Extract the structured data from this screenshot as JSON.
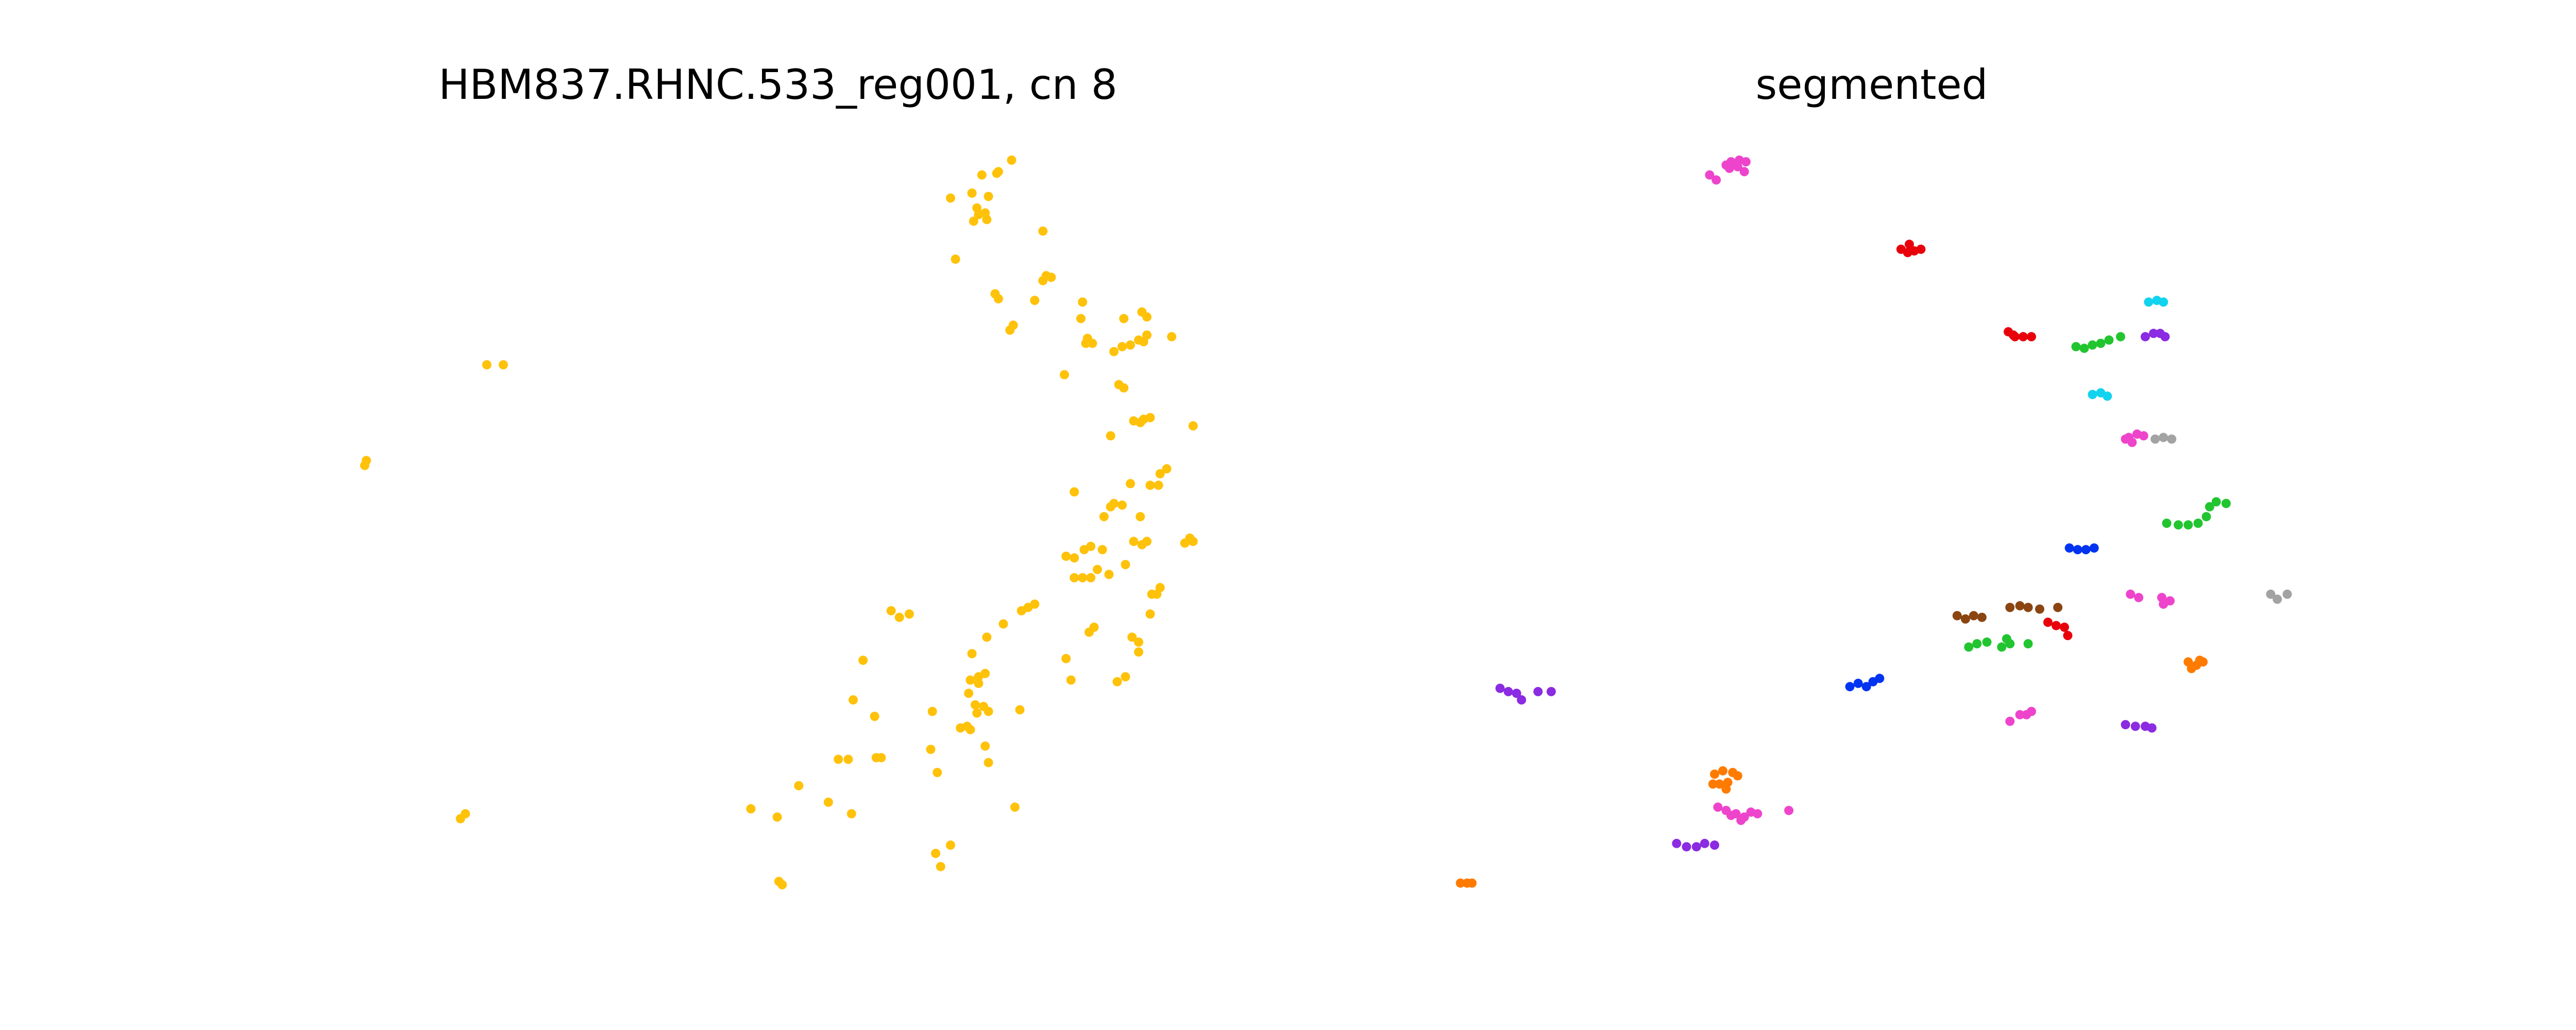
{
  "chart_data": [
    {
      "type": "scatter",
      "title": "HBM837.RHNC.533_reg001, cn 8",
      "axes_visible": false,
      "grid": false,
      "legend": "none",
      "series": [
        {
          "color": "#FFC20A",
          "points": [
            [
              613,
              97
            ],
            [
              604,
              105
            ],
            [
              595,
              106
            ],
            [
              605,
              104
            ],
            [
              589,
              117
            ],
            [
              599,
              119
            ],
            [
              576,
              120
            ],
            [
              592,
              126
            ],
            [
              597,
              129
            ],
            [
              593,
              130
            ],
            [
              590,
              134
            ],
            [
              598,
              133
            ],
            [
              632,
              140
            ],
            [
              579,
              157
            ],
            [
              634,
              167
            ],
            [
              637,
              168
            ],
            [
              632,
              170
            ],
            [
              603,
              178
            ],
            [
              605,
              181
            ],
            [
              627,
              182
            ],
            [
              656,
              183
            ],
            [
              614,
              197
            ],
            [
              612,
              200
            ],
            [
              655,
              193
            ],
            [
              681,
              193
            ],
            [
              692,
              189
            ],
            [
              695,
              192
            ],
            [
              659,
              205
            ],
            [
              662,
              208
            ],
            [
              658,
              208
            ],
            [
              675,
              213
            ],
            [
              680,
              210
            ],
            [
              685,
              209
            ],
            [
              690,
              206
            ],
            [
              693,
              207
            ],
            [
              695,
              203
            ],
            [
              710,
              204
            ],
            [
              645,
              227
            ],
            [
              678,
              233
            ],
            [
              681,
              235
            ],
            [
              687,
              255
            ],
            [
              693,
              254
            ],
            [
              697,
              253
            ],
            [
              691,
              256
            ],
            [
              723,
              258
            ],
            [
              673,
              264
            ],
            [
              707,
              284
            ],
            [
              703,
              287
            ],
            [
              685,
              293
            ],
            [
              697,
              294
            ],
            [
              702,
              294
            ],
            [
              651,
              298
            ],
            [
              675,
              305
            ],
            [
              680,
              306
            ],
            [
              673,
              307
            ],
            [
              669,
              313
            ],
            [
              691,
              313
            ],
            [
              721,
              326
            ],
            [
              723,
              328
            ],
            [
              718,
              329
            ],
            [
              687,
              328
            ],
            [
              692,
              330
            ],
            [
              695,
              328
            ],
            [
              661,
              331
            ],
            [
              668,
              333
            ],
            [
              657,
              333
            ],
            [
              646,
              337
            ],
            [
              651,
              338
            ],
            [
              682,
              342
            ],
            [
              665,
              345
            ],
            [
              656,
              350
            ],
            [
              661,
              350
            ],
            [
              651,
              350
            ],
            [
              672,
              348
            ],
            [
              703,
              356
            ],
            [
              701,
              360
            ],
            [
              698,
              360
            ],
            [
              623,
              368
            ],
            [
              627,
              366
            ],
            [
              619,
              370
            ],
            [
              540,
              370
            ],
            [
              545,
              374
            ],
            [
              551,
              372
            ],
            [
              697,
              372
            ],
            [
              608,
              378
            ],
            [
              663,
              380
            ],
            [
              660,
              383
            ],
            [
              598,
              386
            ],
            [
              686,
              386
            ],
            [
              690,
              389
            ],
            [
              690,
              395
            ],
            [
              589,
              396
            ],
            [
              646,
              399
            ],
            [
              523,
              400
            ],
            [
              597,
              408
            ],
            [
              593,
              410
            ],
            [
              588,
              412
            ],
            [
              593,
              414
            ],
            [
              649,
              412
            ],
            [
              677,
              413
            ],
            [
              682,
              410
            ],
            [
              587,
              420
            ],
            [
              517,
              424
            ],
            [
              591,
              427
            ],
            [
              596,
              428
            ],
            [
              599,
              431
            ],
            [
              592,
              432
            ],
            [
              618,
              430
            ],
            [
              565,
              431
            ],
            [
              530,
              434
            ],
            [
              582,
              441
            ],
            [
              588,
              442
            ],
            [
              586,
              440
            ],
            [
              564,
              454
            ],
            [
              597,
              452
            ],
            [
              508,
              460
            ],
            [
              514,
              460
            ],
            [
              531,
              459
            ],
            [
              534,
              459
            ],
            [
              599,
              462
            ],
            [
              568,
              468
            ],
            [
              484,
              476
            ],
            [
              502,
              486
            ],
            [
              455,
              490
            ],
            [
              516,
              493
            ],
            [
              471,
              495
            ],
            [
              615,
              489
            ],
            [
              576,
              512
            ],
            [
              567,
              517
            ],
            [
              570,
              525
            ],
            [
              472,
              534
            ],
            [
              474,
              536
            ],
            [
              295,
              221
            ],
            [
              305,
              221
            ],
            [
              222,
              279
            ],
            [
              221,
              282
            ],
            [
              282,
              493
            ],
            [
              279,
              496
            ]
          ]
        }
      ]
    },
    {
      "type": "scatter",
      "title": "segmented",
      "axes_visible": false,
      "grid": false,
      "legend": "none",
      "series": [
        {
          "color": "#EE44CC",
          "points": [
            [
              1049,
              98
            ],
            [
              1054,
              97
            ],
            [
              1058,
              98
            ],
            [
              1053,
              101
            ],
            [
              1048,
              102
            ],
            [
              1046,
              100
            ],
            [
              1036,
              106
            ],
            [
              1040,
              109
            ],
            [
              1057,
              104
            ],
            [
              1290,
              265
            ],
            [
              1295,
              263
            ],
            [
              1299,
              264
            ],
            [
              1292,
              268
            ],
            [
              1288,
              266
            ],
            [
              1291,
              360
            ],
            [
              1296,
              362
            ],
            [
              1310,
              362
            ],
            [
              1315,
              364
            ],
            [
              1311,
              366
            ],
            [
              1218,
              437
            ],
            [
              1224,
              433
            ],
            [
              1231,
              431
            ],
            [
              1228,
              433
            ],
            [
              1041,
              489
            ],
            [
              1046,
              491
            ],
            [
              1052,
              493
            ],
            [
              1057,
              495
            ],
            [
              1061,
              492
            ],
            [
              1065,
              493
            ],
            [
              1055,
              497
            ],
            [
              1049,
              494
            ],
            [
              1084,
              491
            ]
          ]
        },
        {
          "color": "#E8000B",
          "points": [
            [
              1152,
              151
            ],
            [
              1156,
              153
            ],
            [
              1160,
              152
            ],
            [
              1164,
              151
            ],
            [
              1157,
              148
            ],
            [
              1217,
              201
            ],
            [
              1221,
              204
            ],
            [
              1226,
              204
            ],
            [
              1231,
              204
            ],
            [
              1220,
              203
            ],
            [
              1241,
              377
            ],
            [
              1246,
              379
            ],
            [
              1251,
              380
            ],
            [
              1253,
              385
            ]
          ]
        },
        {
          "color": "#12D3EE",
          "points": [
            [
              1302,
              183
            ],
            [
              1307,
              182
            ],
            [
              1311,
              183
            ],
            [
              1268,
              239
            ],
            [
              1273,
              238
            ],
            [
              1277,
              240
            ]
          ]
        },
        {
          "color": "#22C530",
          "points": [
            [
              1258,
              210
            ],
            [
              1263,
              211
            ],
            [
              1268,
              209
            ],
            [
              1273,
              208
            ],
            [
              1278,
              206
            ],
            [
              1285,
              204
            ],
            [
              1313,
              317
            ],
            [
              1320,
              318
            ],
            [
              1326,
              318
            ],
            [
              1332,
              317
            ],
            [
              1337,
              313
            ],
            [
              1339,
              307
            ],
            [
              1343,
              304
            ],
            [
              1349,
              305
            ],
            [
              1193,
              392
            ],
            [
              1198,
              390
            ],
            [
              1204,
              389
            ],
            [
              1213,
              392
            ],
            [
              1218,
              390
            ],
            [
              1229,
              390
            ],
            [
              1216,
              387
            ]
          ]
        },
        {
          "color": "#8B2BE2",
          "points": [
            [
              1300,
              204
            ],
            [
              1305,
              202
            ],
            [
              1309,
              202
            ],
            [
              1312,
              204
            ],
            [
              1288,
              439
            ],
            [
              1294,
              440
            ],
            [
              1300,
              440
            ],
            [
              1304,
              441
            ],
            [
              909,
              417
            ],
            [
              914,
              419
            ],
            [
              919,
              420
            ],
            [
              922,
              424
            ],
            [
              932,
              419
            ],
            [
              940,
              419
            ],
            [
              1016,
              511
            ],
            [
              1022,
              513
            ],
            [
              1028,
              513
            ],
            [
              1033,
              511
            ],
            [
              1039,
              512
            ]
          ]
        },
        {
          "color": "#A3A3A3",
          "points": [
            [
              1306,
              266
            ],
            [
              1311,
              265
            ],
            [
              1316,
              266
            ],
            [
              1376,
              360
            ],
            [
              1380,
              363
            ],
            [
              1386,
              360
            ]
          ]
        },
        {
          "color": "#0034F0",
          "points": [
            [
              1254,
              332
            ],
            [
              1259,
              333
            ],
            [
              1264,
              333
            ],
            [
              1269,
              332
            ],
            [
              1121,
              416
            ],
            [
              1126,
              414
            ],
            [
              1131,
              416
            ],
            [
              1135,
              413
            ],
            [
              1139,
              411
            ]
          ]
        },
        {
          "color": "#8B4511",
          "points": [
            [
              1186,
              373
            ],
            [
              1191,
              375
            ],
            [
              1196,
              373
            ],
            [
              1201,
              374
            ],
            [
              1218,
              368
            ],
            [
              1224,
              367
            ],
            [
              1229,
              368
            ],
            [
              1236,
              369
            ],
            [
              1247,
              368
            ]
          ]
        },
        {
          "color": "#FF7B00",
          "points": [
            [
              1326,
              401
            ],
            [
              1331,
              403
            ],
            [
              1335,
              401
            ],
            [
              1328,
              405
            ],
            [
              1333,
              400
            ],
            [
              1039,
              469
            ],
            [
              1044,
              467
            ],
            [
              1050,
              468
            ],
            [
              1053,
              470
            ],
            [
              1047,
              474
            ],
            [
              1042,
              475
            ],
            [
              1038,
              475
            ],
            [
              1046,
              478
            ],
            [
              885,
              535
            ],
            [
              889,
              535
            ],
            [
              892,
              535
            ]
          ]
        }
      ]
    }
  ]
}
